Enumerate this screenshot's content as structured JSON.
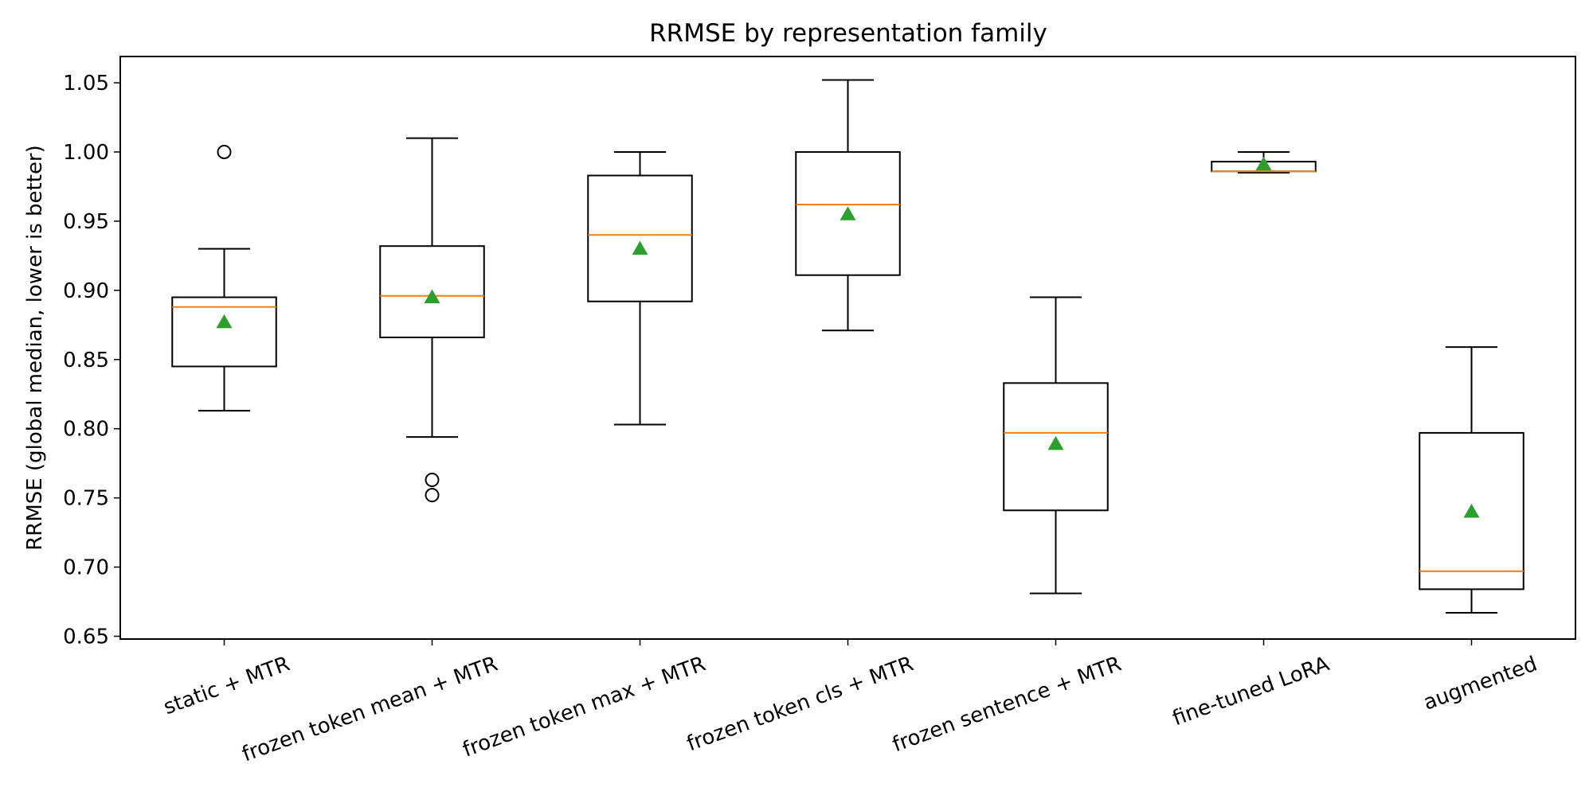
{
  "chart_data": {
    "type": "boxplot",
    "title": "RRMSE by representation family",
    "xlabel": "",
    "ylabel": "RRMSE (global median, lower is better)",
    "ylim": [
      0.648,
      1.069
    ],
    "yticks": [
      0.65,
      0.7,
      0.75,
      0.8,
      0.85,
      0.9,
      0.95,
      1.0,
      1.05
    ],
    "ytick_labels": [
      "0.65",
      "0.70",
      "0.75",
      "0.80",
      "0.85",
      "0.90",
      "0.95",
      "1.00",
      "1.05"
    ],
    "grid": false,
    "legend": "none",
    "colors": {
      "box": "#000000",
      "median": "#ff7f0e",
      "mean": "#2ca02c",
      "outlier": "#000000"
    },
    "categories": [
      "static + MTR",
      "frozen token mean + MTR",
      "frozen token max + MTR",
      "frozen token cls + MTR",
      "frozen sentence + MTR",
      "fine-tuned LoRA",
      "augmented"
    ],
    "boxes": [
      {
        "whisker_low": 0.813,
        "q1": 0.845,
        "median": 0.888,
        "q3": 0.895,
        "whisker_high": 0.93,
        "mean": 0.877,
        "outliers": [
          1.0
        ]
      },
      {
        "whisker_low": 0.794,
        "q1": 0.866,
        "median": 0.896,
        "q3": 0.932,
        "whisker_high": 1.01,
        "mean": 0.895,
        "outliers": [
          0.763,
          0.752
        ]
      },
      {
        "whisker_low": 0.803,
        "q1": 0.892,
        "median": 0.94,
        "q3": 0.983,
        "whisker_high": 1.0,
        "mean": 0.93,
        "outliers": []
      },
      {
        "whisker_low": 0.871,
        "q1": 0.911,
        "median": 0.962,
        "q3": 1.0,
        "whisker_high": 1.052,
        "mean": 0.955,
        "outliers": []
      },
      {
        "whisker_low": 0.681,
        "q1": 0.741,
        "median": 0.797,
        "q3": 0.833,
        "whisker_high": 0.895,
        "mean": 0.789,
        "outliers": []
      },
      {
        "whisker_low": 0.985,
        "q1": 0.986,
        "median": 0.986,
        "q3": 0.993,
        "whisker_high": 1.0,
        "mean": 0.991,
        "outliers": []
      },
      {
        "whisker_low": 0.667,
        "q1": 0.684,
        "median": 0.697,
        "q3": 0.797,
        "whisker_high": 0.859,
        "mean": 0.74,
        "outliers": []
      }
    ]
  }
}
